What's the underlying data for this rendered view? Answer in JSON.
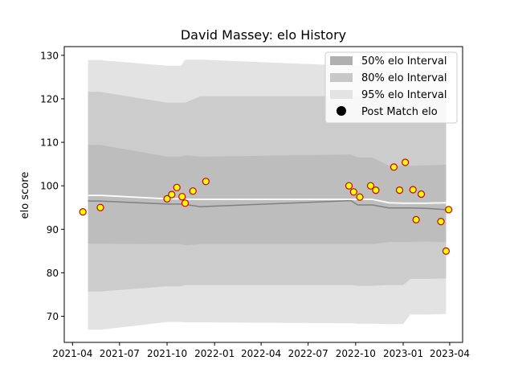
{
  "chart_data": {
    "type": "line",
    "title": "David Massey: elo History",
    "xlabel": "",
    "ylabel": "elo score",
    "xlim": [
      "2021-03-16",
      "2023-04-26"
    ],
    "ylim": [
      64,
      132
    ],
    "x_ticks": [
      "2021-04",
      "2021-07",
      "2021-10",
      "2022-01",
      "2022-04",
      "2022-07",
      "2022-10",
      "2023-01",
      "2023-04"
    ],
    "y_ticks": [
      70,
      80,
      90,
      100,
      110,
      120,
      130
    ],
    "grid": false,
    "legend_position": "top-right",
    "legend": {
      "interval_50": "50% elo Interval",
      "interval_80": "80% elo Interval",
      "interval_95": "95% elo Interval",
      "points": "Post Match elo"
    },
    "colors": {
      "interval_50": "#b0b0b0",
      "interval_80": "#c8c8c8",
      "interval_95": "#e3e3e3",
      "band_50_fill": "#bdbdbd",
      "band_80_fill": "#cccccc",
      "band_95_fill": "#e3e3e3",
      "mean_line": "#808080",
      "median_line": "#ffffff",
      "point_face": "#ffff00",
      "point_edge": "#cc0000"
    },
    "bands": {
      "x": [
        "2021-05-01",
        "2021-05-25",
        "2021-10-01",
        "2021-10-28",
        "2021-11-05",
        "2021-12-05",
        "2022-09-22",
        "2022-10-05",
        "2022-11-02",
        "2022-12-05",
        "2023-01-01",
        "2023-01-15",
        "2023-02-15",
        "2023-03-25"
      ],
      "mean": [
        96.5,
        96.5,
        95.8,
        95.8,
        95.7,
        95.2,
        96.6,
        95.6,
        95.6,
        94.9,
        94.9,
        94.9,
        94.8,
        94.5
      ],
      "median": [
        97.8,
        97.8,
        97.0,
        97.0,
        96.9,
        96.9,
        96.9,
        96.9,
        96.9,
        96.1,
        96.0,
        96.0,
        96.0,
        96.1
      ],
      "p50_low": [
        86.7,
        86.7,
        86.6,
        86.6,
        86.3,
        86.6,
        86.6,
        86.6,
        86.6,
        87.1,
        87.1,
        87.1,
        87.2,
        87.0
      ],
      "p50_high": [
        109.4,
        109.4,
        106.7,
        106.7,
        107.0,
        106.7,
        107.2,
        106.5,
        106.5,
        104.6,
        104.6,
        104.6,
        104.7,
        104.9
      ],
      "p80_low": [
        75.7,
        75.7,
        76.9,
        76.9,
        77.2,
        77.2,
        77.2,
        77.0,
        77.0,
        77.2,
        77.2,
        78.6,
        78.6,
        78.7
      ],
      "p80_high": [
        121.6,
        121.6,
        119.1,
        119.1,
        119.1,
        120.6,
        120.6,
        120.6,
        120.6,
        120.6,
        120.6,
        120.6,
        120.6,
        120.6
      ],
      "p95_low": [
        66.9,
        66.9,
        68.7,
        68.7,
        68.6,
        68.6,
        68.4,
        68.3,
        68.3,
        68.2,
        68.2,
        70.4,
        70.4,
        70.5
      ],
      "p95_high": [
        128.9,
        128.9,
        127.6,
        127.6,
        129.0,
        129.0,
        127.6,
        127.6,
        127.6,
        127.6,
        127.6,
        127.6,
        127.6,
        127.6
      ]
    },
    "points": {
      "x": [
        "2021-04-21",
        "2021-05-25",
        "2021-10-01",
        "2021-10-10",
        "2021-10-20",
        "2021-10-30",
        "2021-11-05",
        "2021-11-20",
        "2021-12-15",
        "2022-09-18",
        "2022-09-27",
        "2022-10-09",
        "2022-10-30",
        "2022-11-09",
        "2022-12-14",
        "2022-12-25",
        "2023-01-05",
        "2023-01-20",
        "2023-01-26",
        "2023-02-05",
        "2023-03-15",
        "2023-03-25",
        "2023-03-30"
      ],
      "y": [
        94.0,
        95.0,
        97.0,
        98.0,
        99.6,
        97.5,
        96.0,
        98.8,
        101.0,
        100.0,
        98.6,
        97.4,
        100.0,
        99.0,
        104.3,
        99.0,
        105.4,
        99.1,
        92.2,
        98.1,
        91.8,
        85.0,
        94.5
      ]
    }
  }
}
